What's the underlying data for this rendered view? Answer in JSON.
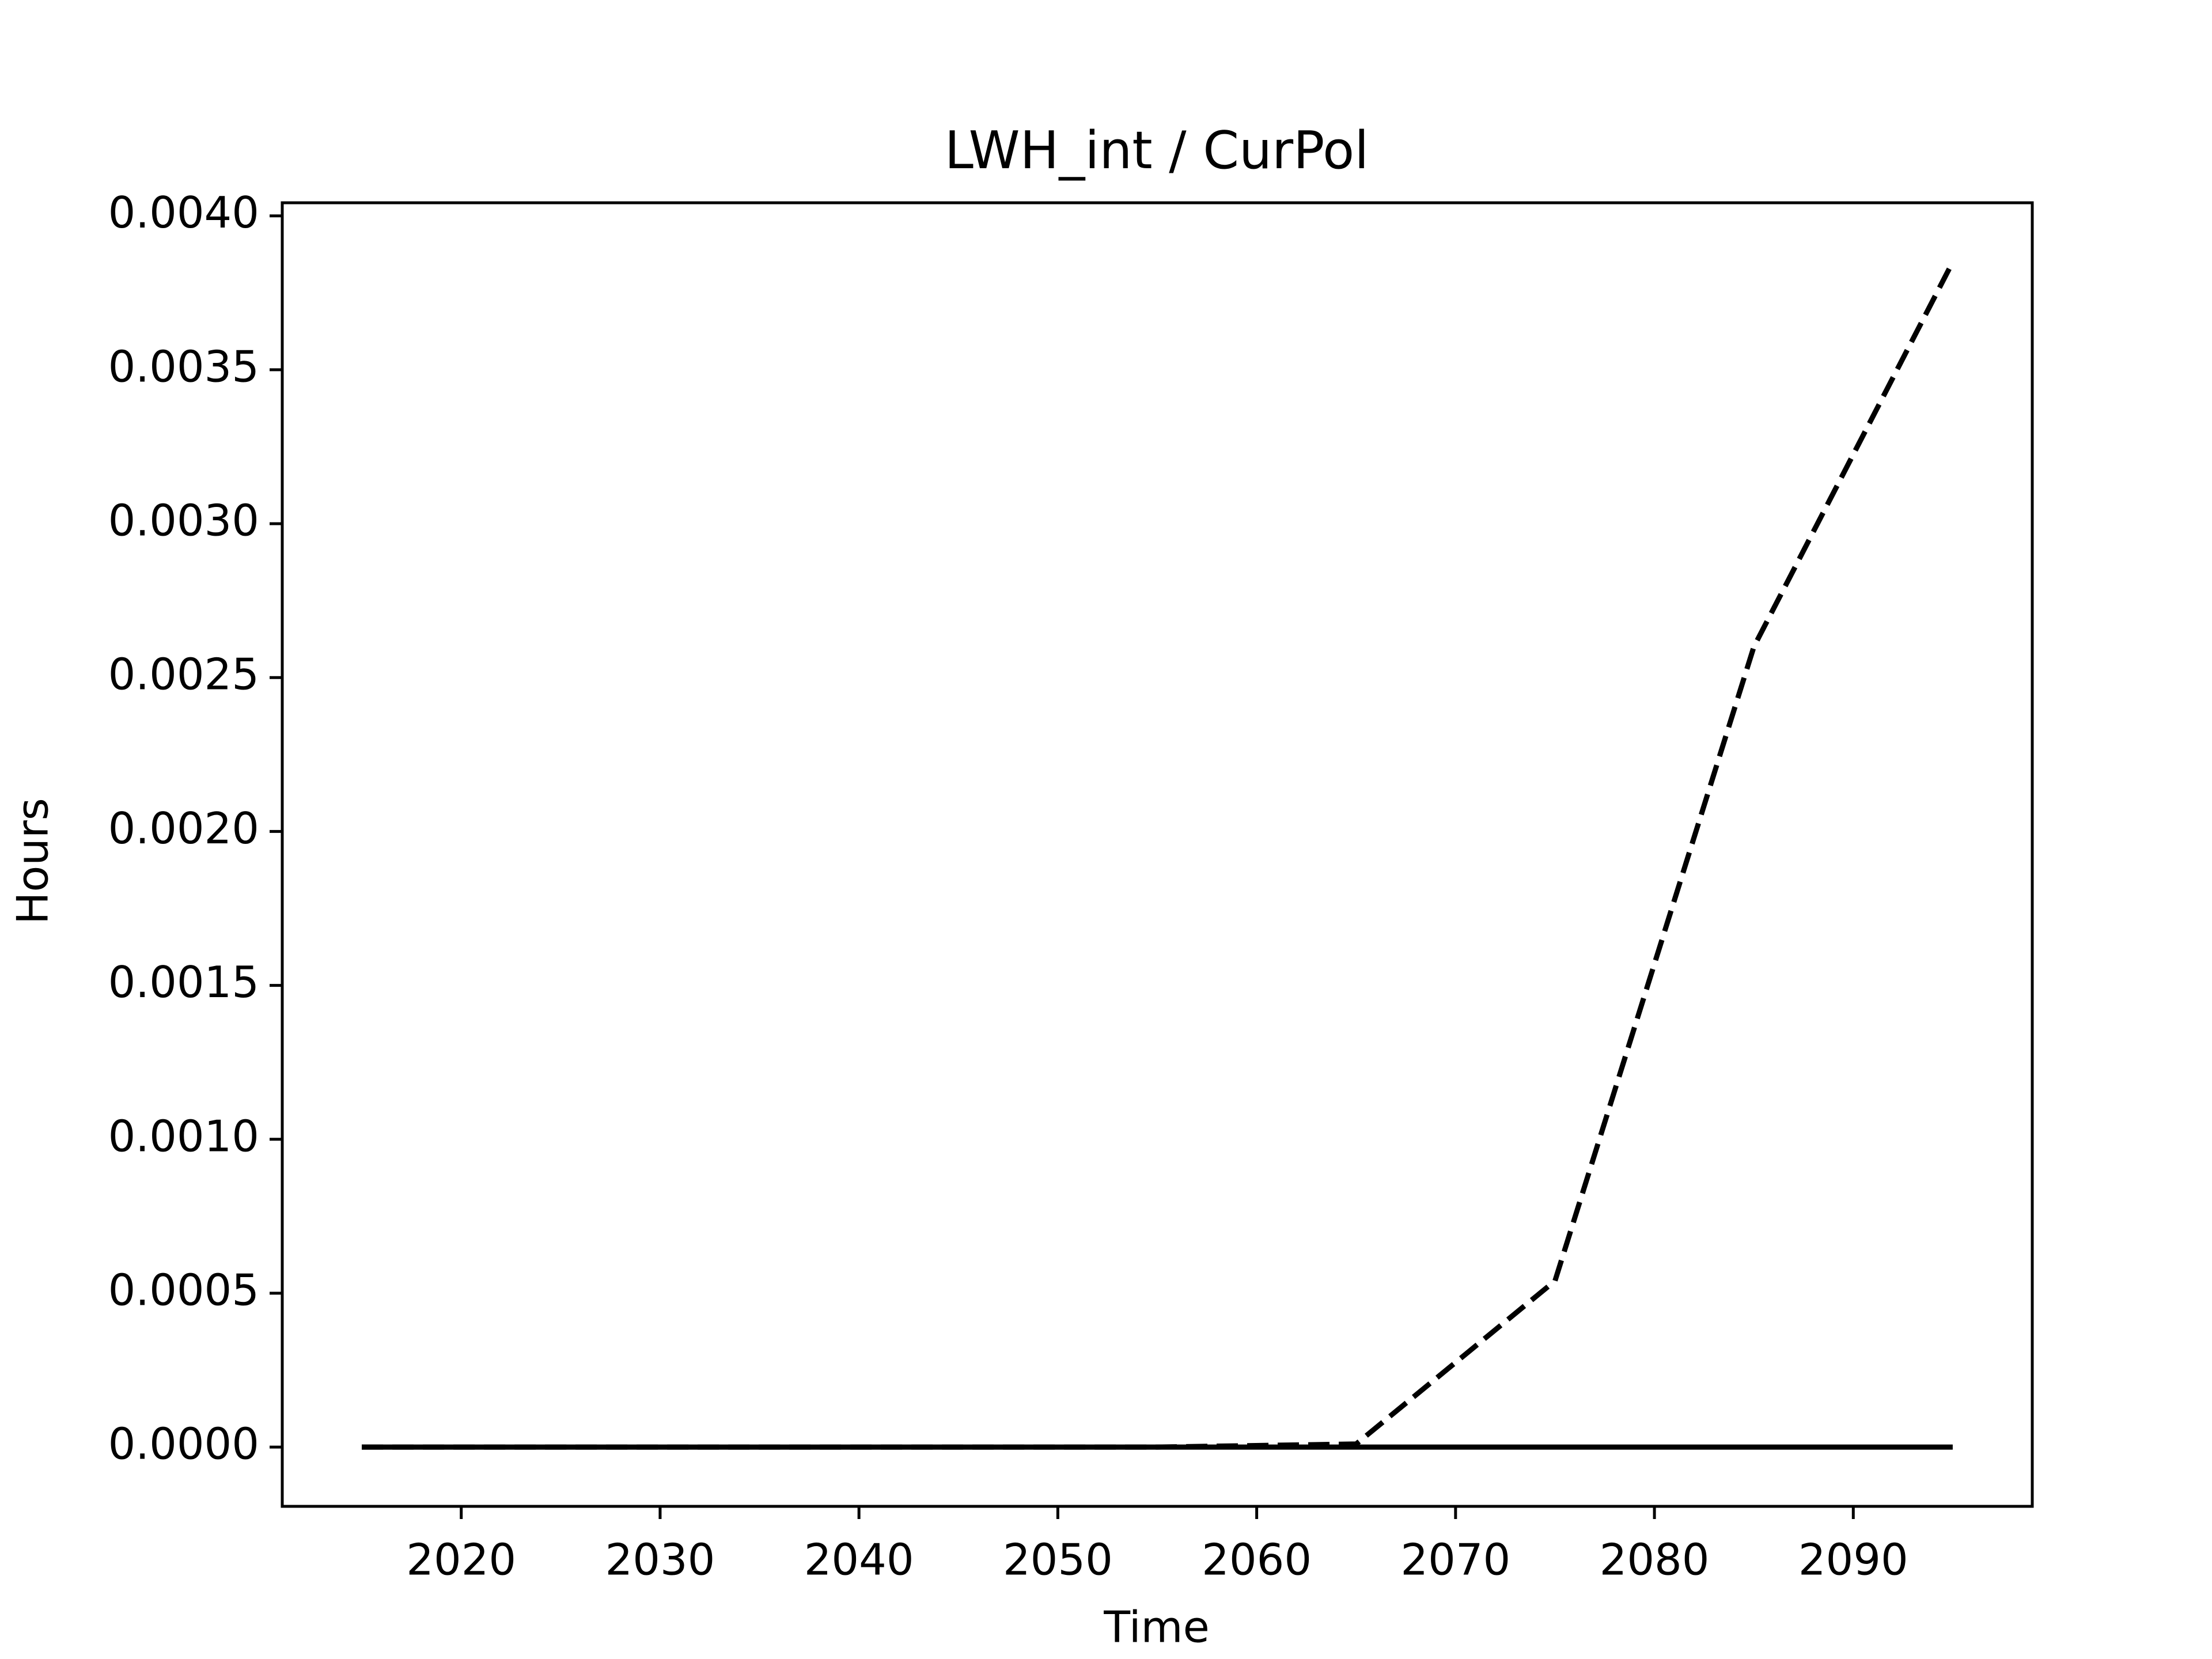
{
  "chart_data": {
    "type": "line",
    "title": "LWH_int / CurPol",
    "x_label": "Time",
    "y_label": "Hours",
    "x": [
      2015,
      2025,
      2035,
      2045,
      2055,
      2065,
      2075,
      2085,
      2095
    ],
    "series": [
      {
        "color": "#000000",
        "linestyle": "solid",
        "values": [
          0,
          0,
          0,
          0,
          0,
          0,
          0,
          0,
          0
        ]
      },
      {
        "color": "#000000",
        "linestyle": "dashed",
        "values": [
          0,
          0,
          0,
          0,
          0,
          1e-05,
          0.00054,
          0.0026,
          0.00385
        ]
      }
    ],
    "xlim": [
      2011,
      2099
    ],
    "ylim": [
      -0.0001925,
      0.0040425
    ],
    "xticks": [
      2020,
      2030,
      2040,
      2050,
      2060,
      2070,
      2080,
      2090
    ],
    "yticks": [
      {
        "value": 0,
        "label": "0.0000"
      },
      {
        "value": 0.0005,
        "label": "0.0005"
      },
      {
        "value": 0.001,
        "label": "0.0010"
      },
      {
        "value": 0.0015,
        "label": "0.0015"
      },
      {
        "value": 0.002,
        "label": "0.0020"
      },
      {
        "value": 0.0025,
        "label": "0.0025"
      },
      {
        "value": 0.003,
        "label": "0.0030"
      },
      {
        "value": 0.0035,
        "label": "0.0035"
      },
      {
        "value": 0.004,
        "label": "0.0040"
      }
    ],
    "grid": false
  }
}
